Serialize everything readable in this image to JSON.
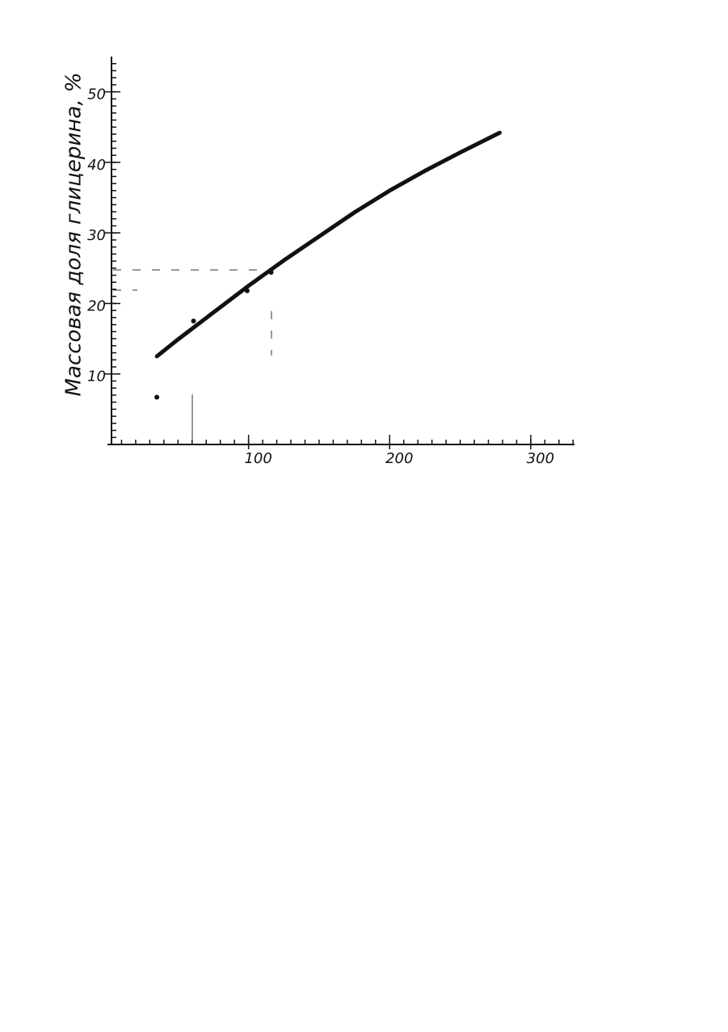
{
  "chart_data": {
    "type": "line",
    "y_label": "Массовая доля глицерина, %",
    "xlim": [
      0,
      331
    ],
    "ylim": [
      0,
      55
    ],
    "xticks": [
      100,
      200,
      300
    ],
    "yticks": [
      10,
      20,
      30,
      40,
      50
    ],
    "series": [
      {
        "kind": "line",
        "color": "#111111",
        "x": [
          35,
          50,
          75,
          100,
          125,
          150,
          175,
          200,
          225,
          250,
          278
        ],
        "values": [
          12.5,
          14.9,
          18.7,
          22.5,
          26.1,
          29.5,
          32.9,
          36.0,
          38.8,
          41.4,
          44.2
        ]
      },
      {
        "kind": "points",
        "color": "#111111",
        "x": [
          35,
          61,
          99,
          116
        ],
        "values": [
          6.7,
          17.5,
          21.8,
          24.4
        ]
      }
    ]
  }
}
